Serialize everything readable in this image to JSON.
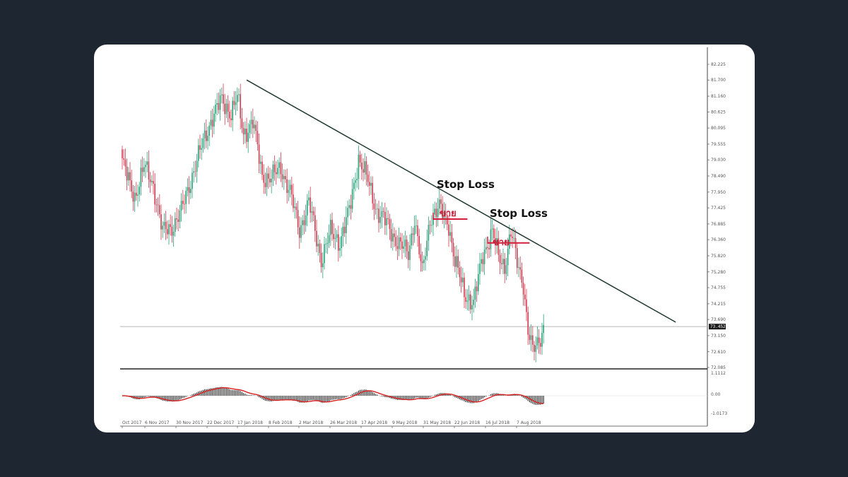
{
  "chart_data": {
    "type": "candlestick",
    "y_ticks": [
      "82.225",
      "81.700",
      "81.160",
      "80.625",
      "80.095",
      "79.555",
      "79.030",
      "78.490",
      "77.950",
      "77.425",
      "76.885",
      "76.360",
      "75.820",
      "75.280",
      "74.755",
      "74.215",
      "73.690",
      "73.150",
      "72.610",
      "72.085"
    ],
    "y_range": [
      72.085,
      82.225
    ],
    "x_ticks": [
      "Oct 2017",
      "6 Nov 2017",
      "30 Nov 2017",
      "22 Dec 2017",
      "17 Jan 2018",
      "8 Feb 2018",
      "2 Mar 2018",
      "26 Mar 2018",
      "17 Apr 2018",
      "9 May 2018",
      "31 May 2018",
      "22 Jun 2018",
      "16 Jul 2018",
      "7 Aug 2018"
    ],
    "current_price": "73.452",
    "current_price_value": 73.452,
    "close_path": [
      {
        "i": 0,
        "v": 79.0
      },
      {
        "i": 4,
        "v": 78.3
      },
      {
        "i": 8,
        "v": 77.8
      },
      {
        "i": 14,
        "v": 78.8
      },
      {
        "i": 20,
        "v": 78.2
      },
      {
        "i": 26,
        "v": 76.6
      },
      {
        "i": 32,
        "v": 76.8
      },
      {
        "i": 38,
        "v": 77.3
      },
      {
        "i": 46,
        "v": 78.7
      },
      {
        "i": 52,
        "v": 79.6
      },
      {
        "i": 58,
        "v": 80.5
      },
      {
        "i": 64,
        "v": 81.0
      },
      {
        "i": 70,
        "v": 80.6
      },
      {
        "i": 74,
        "v": 81.1
      },
      {
        "i": 78,
        "v": 79.9
      },
      {
        "i": 84,
        "v": 80.3
      },
      {
        "i": 90,
        "v": 78.5
      },
      {
        "i": 96,
        "v": 78.4
      },
      {
        "i": 102,
        "v": 78.8
      },
      {
        "i": 108,
        "v": 77.9
      },
      {
        "i": 114,
        "v": 76.7
      },
      {
        "i": 120,
        "v": 77.6
      },
      {
        "i": 128,
        "v": 75.7
      },
      {
        "i": 134,
        "v": 76.6
      },
      {
        "i": 140,
        "v": 76.3
      },
      {
        "i": 146,
        "v": 77.3
      },
      {
        "i": 152,
        "v": 79.1
      },
      {
        "i": 158,
        "v": 78.3
      },
      {
        "i": 164,
        "v": 77.3
      },
      {
        "i": 170,
        "v": 76.9
      },
      {
        "i": 178,
        "v": 76.2
      },
      {
        "i": 184,
        "v": 75.9
      },
      {
        "i": 188,
        "v": 77.1
      },
      {
        "i": 193,
        "v": 75.2
      },
      {
        "i": 198,
        "v": 77.1
      },
      {
        "i": 204,
        "v": 77.4
      },
      {
        "i": 210,
        "v": 76.9
      },
      {
        "i": 214,
        "v": 75.6
      },
      {
        "i": 220,
        "v": 74.6
      },
      {
        "i": 226,
        "v": 74.2
      },
      {
        "i": 232,
        "v": 75.9
      },
      {
        "i": 238,
        "v": 76.6
      },
      {
        "i": 242,
        "v": 75.8
      },
      {
        "i": 246,
        "v": 75.5
      },
      {
        "i": 250,
        "v": 76.6
      },
      {
        "i": 254,
        "v": 75.6
      },
      {
        "i": 258,
        "v": 74.9
      },
      {
        "i": 261,
        "v": 73.3
      },
      {
        "i": 264,
        "v": 72.6
      },
      {
        "i": 268,
        "v": 73.0
      },
      {
        "i": 271,
        "v": 73.45
      }
    ],
    "candle_count": 272,
    "trendline": {
      "from": {
        "i": 80,
        "v": 81.7
      },
      "to": {
        "i": 356,
        "v": 73.6
      }
    },
    "annotations": {
      "stop_loss_1": "Stop Loss",
      "stop_loss_2": "Stop Loss",
      "sell_1": "ขาย",
      "sell_2": "ขาย"
    },
    "sell_levels": [
      {
        "from_i": 200,
        "to_i": 222,
        "v": 77.05
      },
      {
        "from_i": 235,
        "to_i": 262,
        "v": 76.25
      }
    ],
    "indicator": {
      "name": "MACD",
      "ticks": [
        "1.1112",
        "0.00",
        "-1.0173"
      ]
    },
    "colors": {
      "bull": "#2aa17a",
      "bear": "#d23b4f",
      "trendline": "#1f3a30",
      "sell_line": "#d21f3a",
      "signal_line": "#d62020",
      "histogram": "#111111"
    }
  }
}
